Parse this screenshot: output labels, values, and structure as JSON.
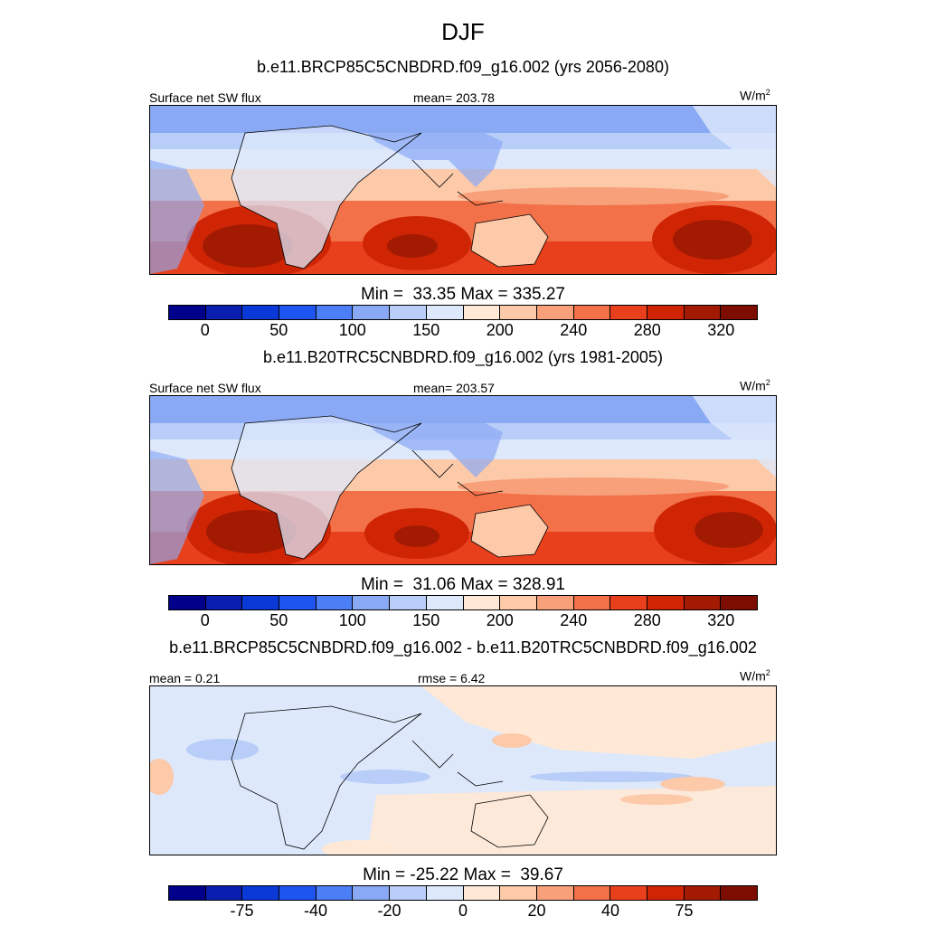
{
  "season": "DJF",
  "colors": {
    "scale": [
      "#00008b",
      "#0a1fb0",
      "#0a39d8",
      "#1e55f0",
      "#4c7ef5",
      "#8aa9f5",
      "#b8cdf7",
      "#dde8fb",
      "#ffe9d6",
      "#fcc9a9",
      "#f8a07a",
      "#f27149",
      "#e8401c",
      "#d02505",
      "#a31a03",
      "#7d0d00"
    ]
  },
  "panels": [
    {
      "title": "b.e11.BRCP85C5CNBDRD.f09_g16.002 (yrs 2056-2080)",
      "left_label": "Surface net SW flux",
      "center_label": "mean= 203.78",
      "units": "W/m",
      "units_sup": "2",
      "minmax": "Min =  33.35 Max = 335.27",
      "ticks": [
        "0",
        "50",
        "100",
        "150",
        "200",
        "240",
        "280",
        "320"
      ],
      "kind": "abs"
    },
    {
      "title": "b.e11.B20TRC5CNBDRD.f09_g16.002 (yrs 1981-2005)",
      "left_label": "Surface net SW flux",
      "center_label": "mean= 203.57",
      "units": "W/m",
      "units_sup": "2",
      "minmax": "Min =  31.06 Max = 328.91",
      "ticks": [
        "0",
        "50",
        "100",
        "150",
        "200",
        "240",
        "280",
        "320"
      ],
      "kind": "abs"
    },
    {
      "title": "b.e11.BRCP85C5CNBDRD.f09_g16.002 - b.e11.B20TRC5CNBDRD.f09_g16.002",
      "left_label": "mean =   0.21",
      "center_label": "rmse =   6.42",
      "units": "W/m",
      "units_sup": "2",
      "minmax": "Min = -25.22 Max =  39.67",
      "ticks": [
        "-75",
        "-40",
        "-20",
        "0",
        "20",
        "40",
        "75"
      ],
      "kind": "diff"
    }
  ]
}
